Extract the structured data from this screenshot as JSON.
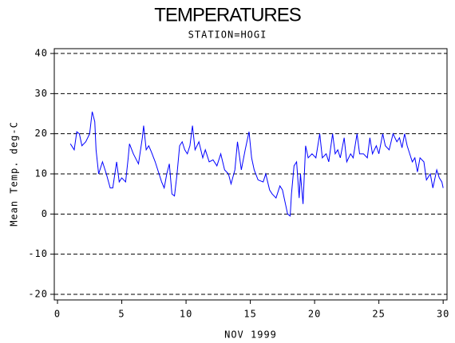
{
  "chart_data": {
    "type": "line",
    "title": "TEMPERATURES",
    "subtitle": "STATION=HOGI",
    "x_label": "NOV 1999",
    "y_label": "Mean Temp. deg-C",
    "color": "#0000ff",
    "grid": true,
    "xlim": [
      -0.25,
      30.3
    ],
    "xticks": [
      0,
      5,
      10,
      15,
      20,
      25,
      30
    ],
    "ylim": [
      -21.4,
      41.2
    ],
    "yticks": [
      -20,
      -10,
      0,
      10,
      20,
      30,
      40
    ],
    "x": [
      1.0,
      1.3,
      1.5,
      1.7,
      1.9,
      2.2,
      2.5,
      2.7,
      2.9,
      3.0,
      3.2,
      3.5,
      3.8,
      4.1,
      4.3,
      4.6,
      4.8,
      5.0,
      5.3,
      5.5,
      5.6,
      5.9,
      6.3,
      6.6,
      6.7,
      6.9,
      7.1,
      7.3,
      7.6,
      7.9,
      8.1,
      8.3,
      8.5,
      8.7,
      8.9,
      9.1,
      9.3,
      9.5,
      9.7,
      9.9,
      10.1,
      10.3,
      10.5,
      10.7,
      11.0,
      11.3,
      11.5,
      11.8,
      12.1,
      12.4,
      12.7,
      13.0,
      13.3,
      13.5,
      13.8,
      14.0,
      14.3,
      14.6,
      14.9,
      15.1,
      15.3,
      15.6,
      16.0,
      16.2,
      16.5,
      16.7,
      17.0,
      17.3,
      17.5,
      17.7,
      17.9,
      18.1,
      18.2,
      18.4,
      18.6,
      18.8,
      18.9,
      19.1,
      19.3,
      19.5,
      19.8,
      20.1,
      20.4,
      20.6,
      20.9,
      21.1,
      21.4,
      21.6,
      21.8,
      22.0,
      22.3,
      22.5,
      22.8,
      23.0,
      23.3,
      23.5,
      23.8,
      24.1,
      24.3,
      24.5,
      24.8,
      25.0,
      25.3,
      25.5,
      25.8,
      26.1,
      26.4,
      26.6,
      26.8,
      27.0,
      27.2,
      27.4,
      27.6,
      27.8,
      28.0,
      28.2,
      28.5,
      28.7,
      29.0,
      29.2,
      29.5,
      29.7,
      29.9,
      30.0
    ],
    "values": [
      17.5,
      16,
      20.5,
      20,
      17,
      18,
      20,
      25.5,
      23,
      16,
      10,
      13,
      10,
      6.5,
      6.5,
      13,
      8,
      9,
      8,
      14,
      17.5,
      15,
      12.5,
      19,
      22,
      16,
      17,
      15.5,
      13,
      10,
      8,
      6.5,
      10,
      12.5,
      5,
      4.5,
      10,
      17,
      18,
      16,
      15,
      17,
      22,
      16,
      18,
      14,
      16,
      13,
      13.5,
      12,
      15,
      11,
      10,
      7.5,
      11,
      18,
      11,
      16,
      20.5,
      14,
      11,
      8.5,
      8,
      10,
      6,
      5,
      4,
      7,
      6,
      3,
      0,
      -0.5,
      5,
      12,
      13,
      4,
      10,
      2.5,
      17,
      14,
      15,
      14,
      20,
      14,
      15,
      13,
      20,
      15,
      16,
      14,
      19,
      13,
      15,
      14,
      20,
      15,
      15,
      14,
      19,
      15,
      17,
      15,
      20,
      17,
      16,
      20,
      18,
      19,
      16.5,
      20,
      17,
      15,
      13,
      14,
      10.5,
      14,
      13,
      8.5,
      10,
      6.5,
      11,
      9,
      8,
      6.5
    ]
  }
}
